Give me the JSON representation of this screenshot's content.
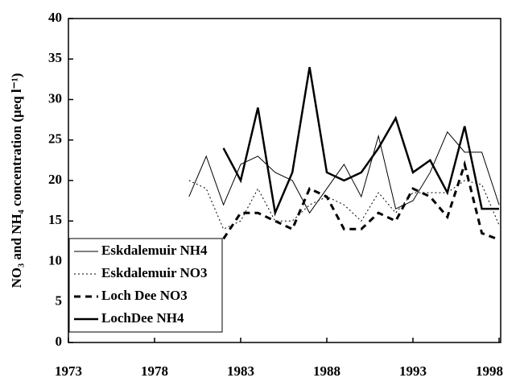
{
  "chart_data": {
    "type": "line",
    "y_label": "NO₃ and NH₄ concentration (μeq l⁻¹)",
    "x": [
      1980,
      1981,
      1982,
      1983,
      1984,
      1985,
      1986,
      1987,
      1988,
      1989,
      1990,
      1991,
      1992,
      1993,
      1994,
      1995,
      1996,
      1997,
      1998
    ],
    "xlim": [
      1973,
      1998
    ],
    "xticks": [
      1973,
      1978,
      1983,
      1988,
      1993,
      1998
    ],
    "ylim": [
      0,
      40
    ],
    "yticks": [
      0,
      5,
      10,
      15,
      20,
      25,
      30,
      35,
      40
    ],
    "legend": "lower-left",
    "series": [
      {
        "name": "Eskdalemuir NH4",
        "color": "#000000",
        "line_style": "solid",
        "line_width": 1,
        "values": [
          18,
          23,
          17,
          22,
          23,
          21,
          20,
          16,
          19,
          22,
          18,
          25.5,
          16.5,
          17.5,
          21,
          26,
          23.5,
          23.5,
          17
        ]
      },
      {
        "name": "Eskdalemuir NO3",
        "color": "#000000",
        "line_style": "dotted",
        "line_width": 1,
        "values": [
          20,
          19,
          14,
          15,
          19,
          15,
          15,
          17,
          18,
          17,
          15,
          18.5,
          16,
          18.5,
          18.5,
          18.5,
          20,
          19.5,
          14.5
        ]
      },
      {
        "name": "Loch Dee NO3",
        "color": "#000000",
        "line_style": "dashed",
        "line_width": 3,
        "values": [
          null,
          null,
          12.8,
          16,
          16,
          15,
          14,
          19,
          18,
          14,
          14,
          16,
          15,
          19,
          18,
          15.5,
          22,
          13.5,
          12.7
        ]
      },
      {
        "name": "LochDee NH4",
        "color": "#000000",
        "line_style": "solid",
        "line_width": 2.5,
        "values": [
          null,
          null,
          24,
          20,
          29,
          16,
          21,
          34,
          21,
          20,
          21,
          24,
          27.7,
          21,
          22.5,
          18.5,
          26.7,
          16.5,
          16.5
        ]
      }
    ]
  }
}
